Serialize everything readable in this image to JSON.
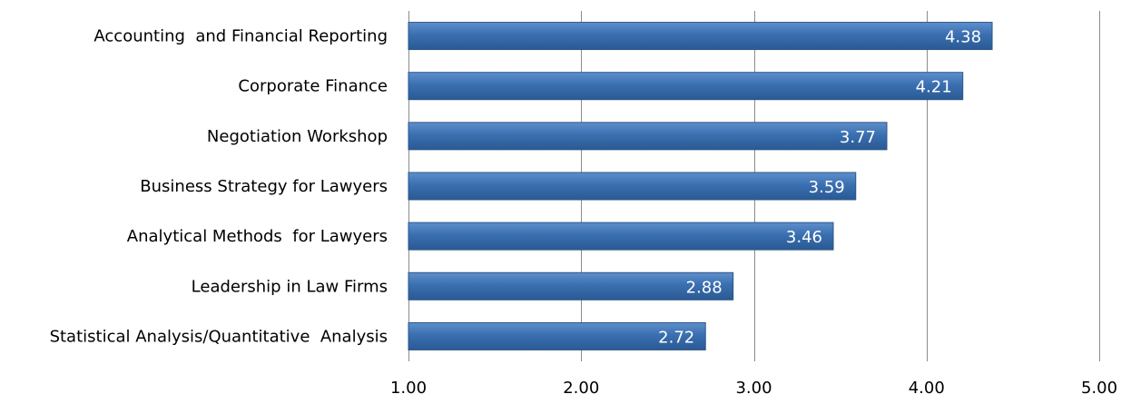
{
  "chart_data": {
    "type": "bar",
    "orientation": "horizontal",
    "categories": [
      "Accounting  and Financial Reporting",
      "Corporate Finance",
      "Negotiation Workshop",
      "Business Strategy for Lawyers",
      "Analytical Methods  for Lawyers",
      "Leadership in Law Firms",
      "Statistical Analysis/Quantitative  Analysis"
    ],
    "values": [
      4.38,
      4.21,
      3.77,
      3.59,
      3.46,
      2.88,
      2.72
    ],
    "data_labels": [
      "4.38",
      "4.21",
      "3.77",
      "3.59",
      "3.46",
      "2.88",
      "2.72"
    ],
    "xlim": [
      1.0,
      5.0
    ],
    "xticks": [
      1.0,
      2.0,
      3.0,
      4.0,
      5.0
    ],
    "xtick_labels": [
      "1.00",
      "2.00",
      "3.00",
      "4.00",
      "5.00"
    ],
    "title": "",
    "xlabel": "",
    "ylabel": "",
    "grid": true,
    "legend": false,
    "bar_color": "#3a6fb0"
  }
}
